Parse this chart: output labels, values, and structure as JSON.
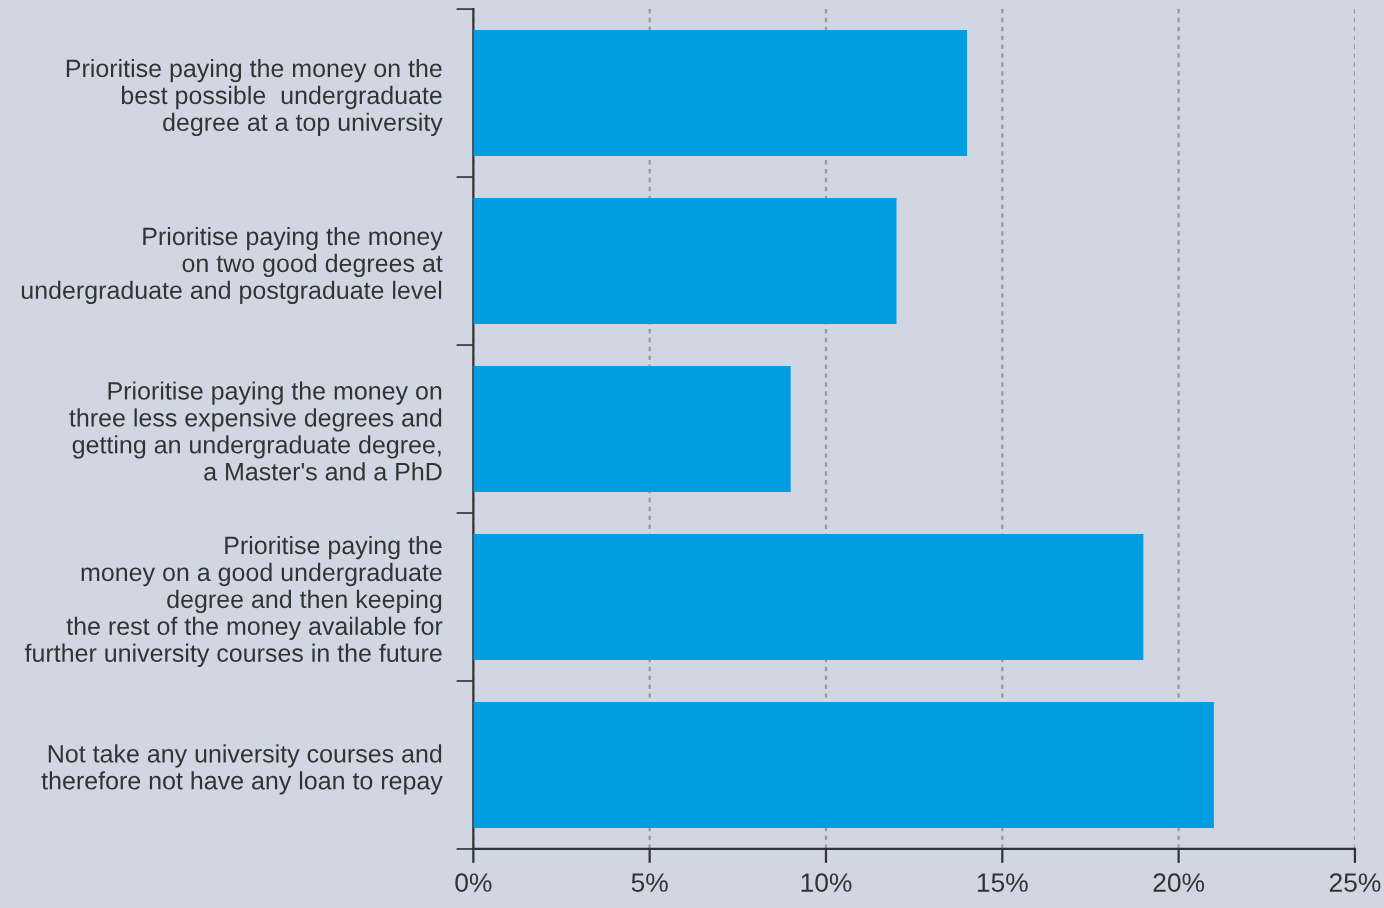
{
  "chart_data": {
    "type": "bar",
    "orientation": "horizontal",
    "categories": [
      "Prioritise paying the money on the\nbest possible  undergraduate\ndegree at a top university",
      "Prioritise paying the money\non two good degrees at\nundergraduate and postgraduate level",
      "Prioritise paying the money on\nthree less expensive degrees and\ngetting an undergraduate degree,\na Master's and a PhD",
      "Prioritise paying the\nmoney on a good undergraduate\ndegree and then keeping\nthe rest of the money available for\nfurther university courses in the future",
      "Not take any university courses and\ntherefore not have any loan to repay"
    ],
    "values": [
      14,
      12,
      9,
      19,
      21
    ],
    "color": "#009ee0",
    "xlim": [
      0,
      25
    ],
    "xticks": [
      {
        "value": 0,
        "label": "0%"
      },
      {
        "value": 5,
        "label": "5%"
      },
      {
        "value": 10,
        "label": "10%"
      },
      {
        "value": 15,
        "label": "15%"
      },
      {
        "value": 20,
        "label": "20%"
      },
      {
        "value": 25,
        "label": "25%"
      }
    ],
    "grid": "x"
  }
}
